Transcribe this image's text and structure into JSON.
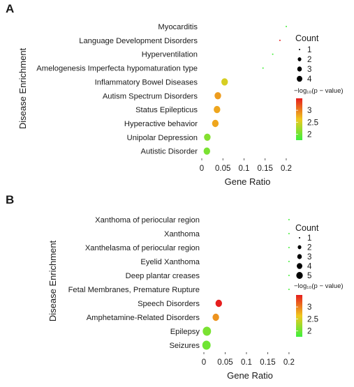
{
  "panels": [
    {
      "letter": "A",
      "xlabel": "Gene Ratio",
      "ylabel": "Disease Enrichment",
      "size_legend_title": "Count",
      "size_legend_labels": [
        "1",
        "2",
        "3",
        "4"
      ],
      "color_legend_title": "−log₁₀(p − value)",
      "color_ticks": [
        "3",
        "2.5",
        "2"
      ]
    },
    {
      "letter": "B",
      "xlabel": "Gene Ratio",
      "ylabel": "Disease Enrichment",
      "size_legend_title": "Count",
      "size_legend_labels": [
        "1",
        "2",
        "3",
        "4",
        "5"
      ],
      "color_legend_title": "−log₁₀(p − value)",
      "color_ticks": [
        "3",
        "2.5",
        "2"
      ]
    }
  ],
  "chart_data": [
    {
      "type": "scatter",
      "xlabel": "Gene Ratio",
      "ylabel": "Disease Enrichment",
      "xlim": [
        0,
        0.21
      ],
      "xticks": [
        "0",
        "0.05",
        "0.1",
        "0.15",
        "0.2"
      ],
      "categories": [
        "Myocarditis",
        "Language Development Disorders",
        "Hyperventilation",
        "Amelogenesis Imperfecta hypomaturation type",
        "Inflammatory Bowel Diseases",
        "Autism Spectrum Disorders",
        "Status Epilepticus",
        "Hyperactive behavior",
        "Unipolar Depression",
        "Autistic Disorder"
      ],
      "gene_ratio": [
        0.2,
        0.185,
        0.168,
        0.145,
        0.054,
        0.038,
        0.036,
        0.032,
        0.013,
        0.012
      ],
      "count": [
        1,
        1,
        1,
        1,
        2,
        2,
        2,
        2,
        2,
        2
      ],
      "neg_log10_p": [
        1.8,
        3.5,
        1.8,
        1.8,
        2.5,
        2.85,
        2.8,
        2.8,
        2.1,
        2.05
      ],
      "color_range": [
        1.75,
        3.5
      ],
      "colors": {
        "low": "#3cf03c",
        "mid": "#f0c81e",
        "high": "#e61e1e"
      }
    },
    {
      "type": "scatter",
      "xlabel": "Gene Ratio",
      "ylabel": "Disease Enrichment",
      "xlim": [
        0,
        0.21
      ],
      "xticks": [
        "0",
        "0.05",
        "0.1",
        "0.15",
        "0.2"
      ],
      "categories": [
        "Xanthoma of periocular region",
        "Xanthoma",
        "Xanthelasma of periocular region",
        "Eyelid Xanthoma",
        "Deep plantar creases",
        "Fetal Membranes, Premature Rupture",
        "Speech Disorders",
        "Amphetamine-Related Disorders",
        "Epilepsy",
        "Seizures"
      ],
      "gene_ratio": [
        0.2,
        0.2,
        0.2,
        0.2,
        0.2,
        0.2,
        0.035,
        0.028,
        0.007,
        0.006
      ],
      "count": [
        1,
        1,
        1,
        1,
        1,
        1,
        2,
        2,
        3,
        3
      ],
      "neg_log10_p": [
        1.8,
        1.8,
        1.8,
        1.8,
        1.8,
        1.8,
        3.5,
        2.9,
        2.05,
        2.0
      ],
      "color_range": [
        1.75,
        3.5
      ],
      "colors": {
        "low": "#3cf03c",
        "mid": "#f0c81e",
        "high": "#e61e1e"
      }
    }
  ]
}
